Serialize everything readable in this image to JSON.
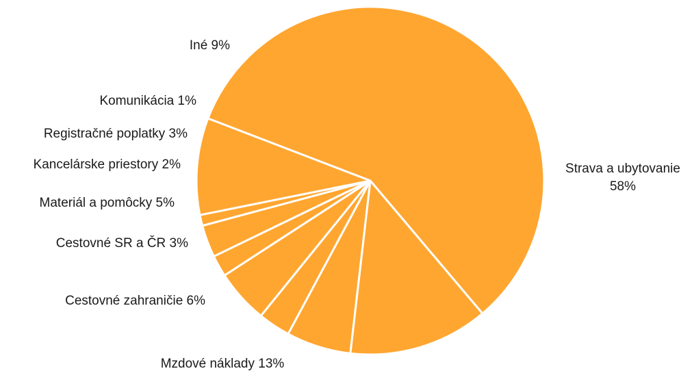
{
  "chart_data": {
    "type": "pie",
    "title": "",
    "slices": [
      {
        "label": "Strava a ubytovanie",
        "value": 58,
        "value_text": "58%"
      },
      {
        "label": "Mzdové náklady",
        "value": 13,
        "value_text": "13%"
      },
      {
        "label": "Cestovné zahraničie",
        "value": 6,
        "value_text": "6%"
      },
      {
        "label": "Cestovné SR a ČR",
        "value": 3,
        "value_text": "3%"
      },
      {
        "label": "Materiál a pomôcky",
        "value": 5,
        "value_text": "5%"
      },
      {
        "label": "Kancelárske priestory",
        "value": 2,
        "value_text": "2%"
      },
      {
        "label": "Registračné poplatky",
        "value": 3,
        "value_text": "3%"
      },
      {
        "label": "Komunikácia",
        "value": 1,
        "value_text": "1%"
      },
      {
        "label": "Iné",
        "value": 9,
        "value_text": "9%"
      }
    ],
    "direction": "clockwise",
    "start": "top",
    "colors": {
      "slice_fill": "#FFA630",
      "slice_border": "#FFFFFF",
      "label_text": "#1A1A1A"
    },
    "legend": "none"
  }
}
